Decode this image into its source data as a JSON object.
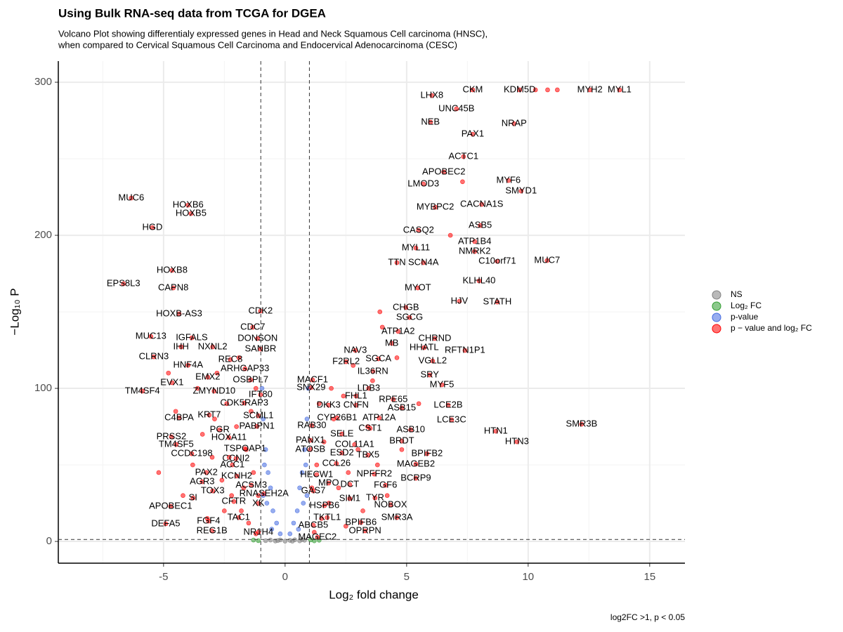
{
  "chart_data": {
    "type": "scatter",
    "title": "Using Bulk RNA-seq data from TCGA for DGEA",
    "subtitle": [
      "Volcano Plot showing differentialy expressed genes in Head and Neck Squamous Cell carcinoma (HNSC),",
      "when compared to Cervical Squamous Cell Carcinoma and Endocervical Adenocarcinoma (CESC)"
    ],
    "xlabel": "Log₂ fold change",
    "ylabel": "−Log₁₀ P",
    "caption": "log2FC >1, p < 0.05",
    "xlim": [
      -9.33,
      16.45
    ],
    "ylim": [
      -14.2,
      313.8
    ],
    "xticks": [
      -5,
      0,
      5,
      10,
      15
    ],
    "yticks": [
      0,
      100,
      200,
      300
    ],
    "minor_xticks": [
      -7.5,
      -2.5,
      2.5,
      7.5,
      12.5
    ],
    "minor_yticks": [
      50,
      150,
      250
    ],
    "grid": true,
    "vlines": [
      -1,
      1
    ],
    "hline": 1.3,
    "legend_position": "right",
    "series": [
      {
        "name": "NS",
        "color": "#808080",
        "x": [
          -0.8,
          -0.6,
          -0.4,
          -0.2,
          0,
          0.2,
          0.4,
          0.6,
          0.8,
          -0.3,
          0.3,
          0.7
        ],
        "values": [
          0.5,
          0.9,
          0.3,
          1.0,
          0.2,
          0.7,
          1.1,
          0.4,
          0.8,
          0.6,
          0.2,
          1.2
        ]
      },
      {
        "name": "Log₂ FC",
        "color": "#2e9c2e",
        "x": [
          -1.1,
          -1.3,
          1.05,
          1.2,
          1.4
        ],
        "values": [
          0.5,
          0.9,
          1.0,
          0.4,
          0.8
        ]
      },
      {
        "name": "p-value",
        "color": "#4169e1",
        "x": [
          -0.2,
          0.2,
          -0.35,
          0.35,
          -0.5,
          0.5,
          -0.6,
          0.6,
          -0.7,
          0.7,
          -0.8,
          0.8,
          -0.9,
          0.9,
          -0.95,
          0.95,
          -0.85,
          0.85,
          -0.75,
          0.75,
          -0.55,
          0.55,
          -0.9,
          0.9
        ],
        "values": [
          5,
          5,
          12,
          12,
          20,
          20,
          35,
          35,
          45,
          45,
          60,
          60,
          80,
          80,
          100,
          100,
          50,
          50,
          25,
          25,
          8,
          8,
          30,
          30
        ]
      },
      {
        "name": "p − value and log₂ FC",
        "color": "#ff0000",
        "labels": [
          "CKM",
          "KDM5D",
          "MYH2",
          "MYL1",
          "LHX8",
          "UNC45B",
          "NEB",
          "NRAP",
          "PAX1",
          "ACTC1",
          "APOBEC2",
          "MYF6",
          "LMOD3",
          "SMYD1",
          "MYBPC2",
          "CACNA1S",
          "ASB5",
          "CASQ2",
          "ATP1B4",
          "MYL11",
          "NMRK2",
          "MUC7",
          "C10orf71",
          "TTN",
          "SCN4A",
          "KLHL40",
          "MYOT",
          "HJV",
          "STATH",
          "CHGB",
          "SGCG",
          "ATP1A2",
          "CHRND",
          "MB",
          "HHATL",
          "RFTN1P1",
          "NAV3",
          "SGCA",
          "VGLL2",
          "F2RL2",
          "IL36RN",
          "SRY",
          "MACF1",
          "MYF5",
          "SNX29",
          "LDB3",
          "FHL1",
          "RPE65",
          "LCE2B",
          "ASB15",
          "DKK3",
          "CNFN",
          "LCE3C",
          "SMR3B",
          "CYP26B1",
          "ATP12A",
          "RAB30",
          "CST1",
          "ASB10",
          "HTN1",
          "SELE",
          "HTN3",
          "BRDT",
          "PANX1",
          "COL11A1",
          "BPIFB2",
          "ATOSB",
          "ESD2",
          "TBX5",
          "CCL26",
          "MAGEB2",
          "NPFFR2",
          "BCRP9",
          "HECW1",
          "MPO",
          "DCT",
          "FGF6",
          "GAS7",
          "SIM1",
          "TYR",
          "NOBOX",
          "HSPB6",
          "SMR3A",
          "TKTL1",
          "BPIFB6",
          "ABCB5",
          "OPRPN",
          "MAGEC2",
          "MUC6",
          "HOXB6",
          "HOXB5",
          "HGD",
          "HOXB8",
          "EPS8L3",
          "CAPN8",
          "HOXB-AS3",
          "CDK2",
          "CDC7",
          "MUC13",
          "IGFALS",
          "DONSON",
          "IHH",
          "NXNL2",
          "SANBR",
          "CLRN3",
          "REC8",
          "HNF4A",
          "ARHGAP33",
          "EMX2",
          "EVX1",
          "OSBPL7",
          "TM4SF4",
          "ZMYND10",
          "IFT80",
          "CDK5RAP3",
          "C4BPA",
          "KRT7",
          "SCML1",
          "PABPN1",
          "PGR",
          "PRSS2",
          "HOXA11",
          "TM4SF5",
          "TSPOAP1",
          "CCDC198",
          "CCNI2",
          "ACC1",
          "PAX2",
          "KCNH2",
          "AGR3",
          "ACSM3",
          "TOX3",
          "RNASEH2A",
          "SI",
          "CFTR",
          "XK",
          "APOBEC1",
          "TAC1",
          "DEFA5",
          "FGF4",
          "REG1B",
          "NR1H4",
          null,
          null,
          null,
          null,
          null,
          null,
          null,
          null,
          null,
          null,
          null,
          null,
          null,
          null,
          null,
          null,
          null,
          null,
          null,
          null,
          null,
          null,
          null,
          null,
          null,
          null,
          null,
          null,
          null,
          null,
          null,
          null,
          null,
          null,
          null,
          null,
          null,
          null,
          null,
          null,
          null,
          null,
          null,
          null,
          null,
          null,
          null,
          null,
          null,
          null,
          null,
          null,
          null,
          null,
          null,
          null,
          null
        ],
        "x": [
          7.72,
          9.65,
          12.54,
          13.76,
          6.04,
          7.05,
          5.98,
          9.42,
          7.72,
          7.34,
          6.53,
          9.19,
          5.69,
          9.71,
          6.18,
          8.09,
          8.03,
          5.49,
          7.8,
          5.38,
          7.8,
          10.78,
          8.73,
          4.6,
          5.69,
          7.98,
          5.46,
          7.17,
          8.73,
          4.97,
          5.12,
          4.65,
          6.16,
          4.39,
          5.72,
          7.4,
          2.89,
          3.84,
          6.07,
          2.51,
          3.61,
          5.95,
          1.13,
          6.45,
          1.07,
          3.44,
          2.92,
          4.45,
          6.71,
          4.8,
          1.79,
          2.92,
          6.85,
          12.2,
          2.14,
          3.87,
          1.1,
          3.5,
          5.17,
          8.67,
          2.34,
          9.54,
          4.8,
          1.04,
          2.86,
          5.84,
          1.04,
          2.34,
          3.41,
          2.11,
          5.38,
          3.67,
          5.38,
          1.3,
          1.79,
          2.66,
          4.13,
          1.16,
          2.66,
          3.7,
          4.34,
          1.62,
          4.6,
          1.73,
          3.12,
          1.16,
          3.29,
          1.33,
          -6.33,
          -3.99,
          -3.87,
          -5.46,
          -4.65,
          -6.65,
          -4.6,
          -4.36,
          -1.01,
          -1.33,
          -5.52,
          -3.84,
          -1.13,
          -4.28,
          -2.98,
          -1.01,
          -5.4,
          -2.25,
          -3.99,
          -1.65,
          -3.18,
          -4.65,
          -1.42,
          -5.87,
          -2.92,
          -1.01,
          -1.68,
          -4.36,
          -3.12,
          -1.1,
          -1.16,
          -2.69,
          -4.68,
          -2.31,
          -4.48,
          -1.65,
          -3.84,
          -2.02,
          -2.17,
          -3.24,
          -1.99,
          -3.41,
          -1.39,
          -2.98,
          -0.87,
          -3.79,
          -2.11,
          -1.1,
          -4.71,
          -1.91,
          -4.91,
          -3.15,
          -3.01,
          -1.1,
          -1.2,
          -1.5,
          -1.8,
          -2.2,
          -2.6,
          -3,
          -1.3,
          -1.6,
          -2,
          -1.4,
          -2.4,
          -3.4,
          -3.8,
          -4.2,
          -2.8,
          -3.6,
          -1.9,
          -1.2,
          -4.5,
          -2.5,
          -3.2,
          -1.1,
          -1.7,
          -2.3,
          -2.9,
          -5.2,
          -4.8,
          1.2,
          1.5,
          1.8,
          2.2,
          2.6,
          3,
          1.3,
          1.6,
          2,
          1.4,
          2.4,
          3.4,
          3.8,
          4.2,
          2.8,
          3.6,
          1.9,
          4,
          4.6,
          3.2,
          2.5,
          1.1,
          4.8,
          5.5,
          3.9,
          6.8,
          7.3,
          10.3,
          10.8,
          11.2
        ],
        "values": [
          295,
          295,
          295,
          295,
          291.3,
          282.6,
          273.9,
          272.9,
          266,
          251.4,
          241.3,
          235.8,
          233.5,
          228.9,
          218.3,
          220.2,
          206.4,
          203.2,
          195.9,
          191.7,
          189.4,
          183.5,
          183,
          182.1,
          182.1,
          170.2,
          165.6,
          156.9,
          156.4,
          152.8,
          146.3,
          137.2,
          132.6,
          129.4,
          126.6,
          124.8,
          124.8,
          119.3,
          117.9,
          117.4,
          111,
          108.7,
          105.5,
          102.3,
          100.5,
          100,
          95,
          92.7,
          89,
          87.2,
          89,
          89,
          79.4,
          76.6,
          80.7,
          80.7,
          75.7,
          73.9,
          72.9,
          72,
          70.2,
          65.1,
          65.6,
          66.1,
          63.3,
          57.3,
          60.1,
          57.8,
          56.4,
          50.9,
          50.5,
          44,
          41.3,
          43.6,
          38.1,
          37.2,
          36.7,
          33,
          28,
          28.4,
          23.9,
          23.4,
          15.6,
          15.6,
          12.4,
          10.6,
          6.9,
          2.8,
          224.3,
          219.7,
          214.2,
          205,
          177.1,
          168.3,
          165.6,
          148.6,
          150.5,
          139.9,
          133.9,
          133,
          132.6,
          127.1,
          127.1,
          125.7,
          120.6,
          118.8,
          115.1,
          112.8,
          107.3,
          103.7,
          105.5,
          98.2,
          98.2,
          95.9,
          90.4,
          80.7,
          82.6,
          82.1,
          75.2,
          72.9,
          68.3,
          67.9,
          63.3,
          60.6,
          57.3,
          54.1,
          50,
          45,
          42.7,
          39,
          36.7,
          33,
          31.2,
          28.4,
          26.1,
          24.8,
          22.9,
          15.6,
          11.5,
          13.3,
          6.9,
          6,
          5,
          12,
          20,
          30,
          40,
          55,
          45,
          60,
          75,
          85,
          90,
          70,
          50,
          30,
          110,
          100,
          120,
          100,
          85,
          20,
          15,
          30,
          35,
          55,
          80,
          45,
          110,
          6,
          15,
          25,
          35,
          45,
          60,
          50,
          65,
          80,
          90,
          95,
          75,
          50,
          30,
          115,
          105,
          100,
          140,
          120,
          20,
          10,
          35,
          60,
          90,
          150,
          200,
          235,
          295,
          295,
          295
        ]
      }
    ]
  }
}
